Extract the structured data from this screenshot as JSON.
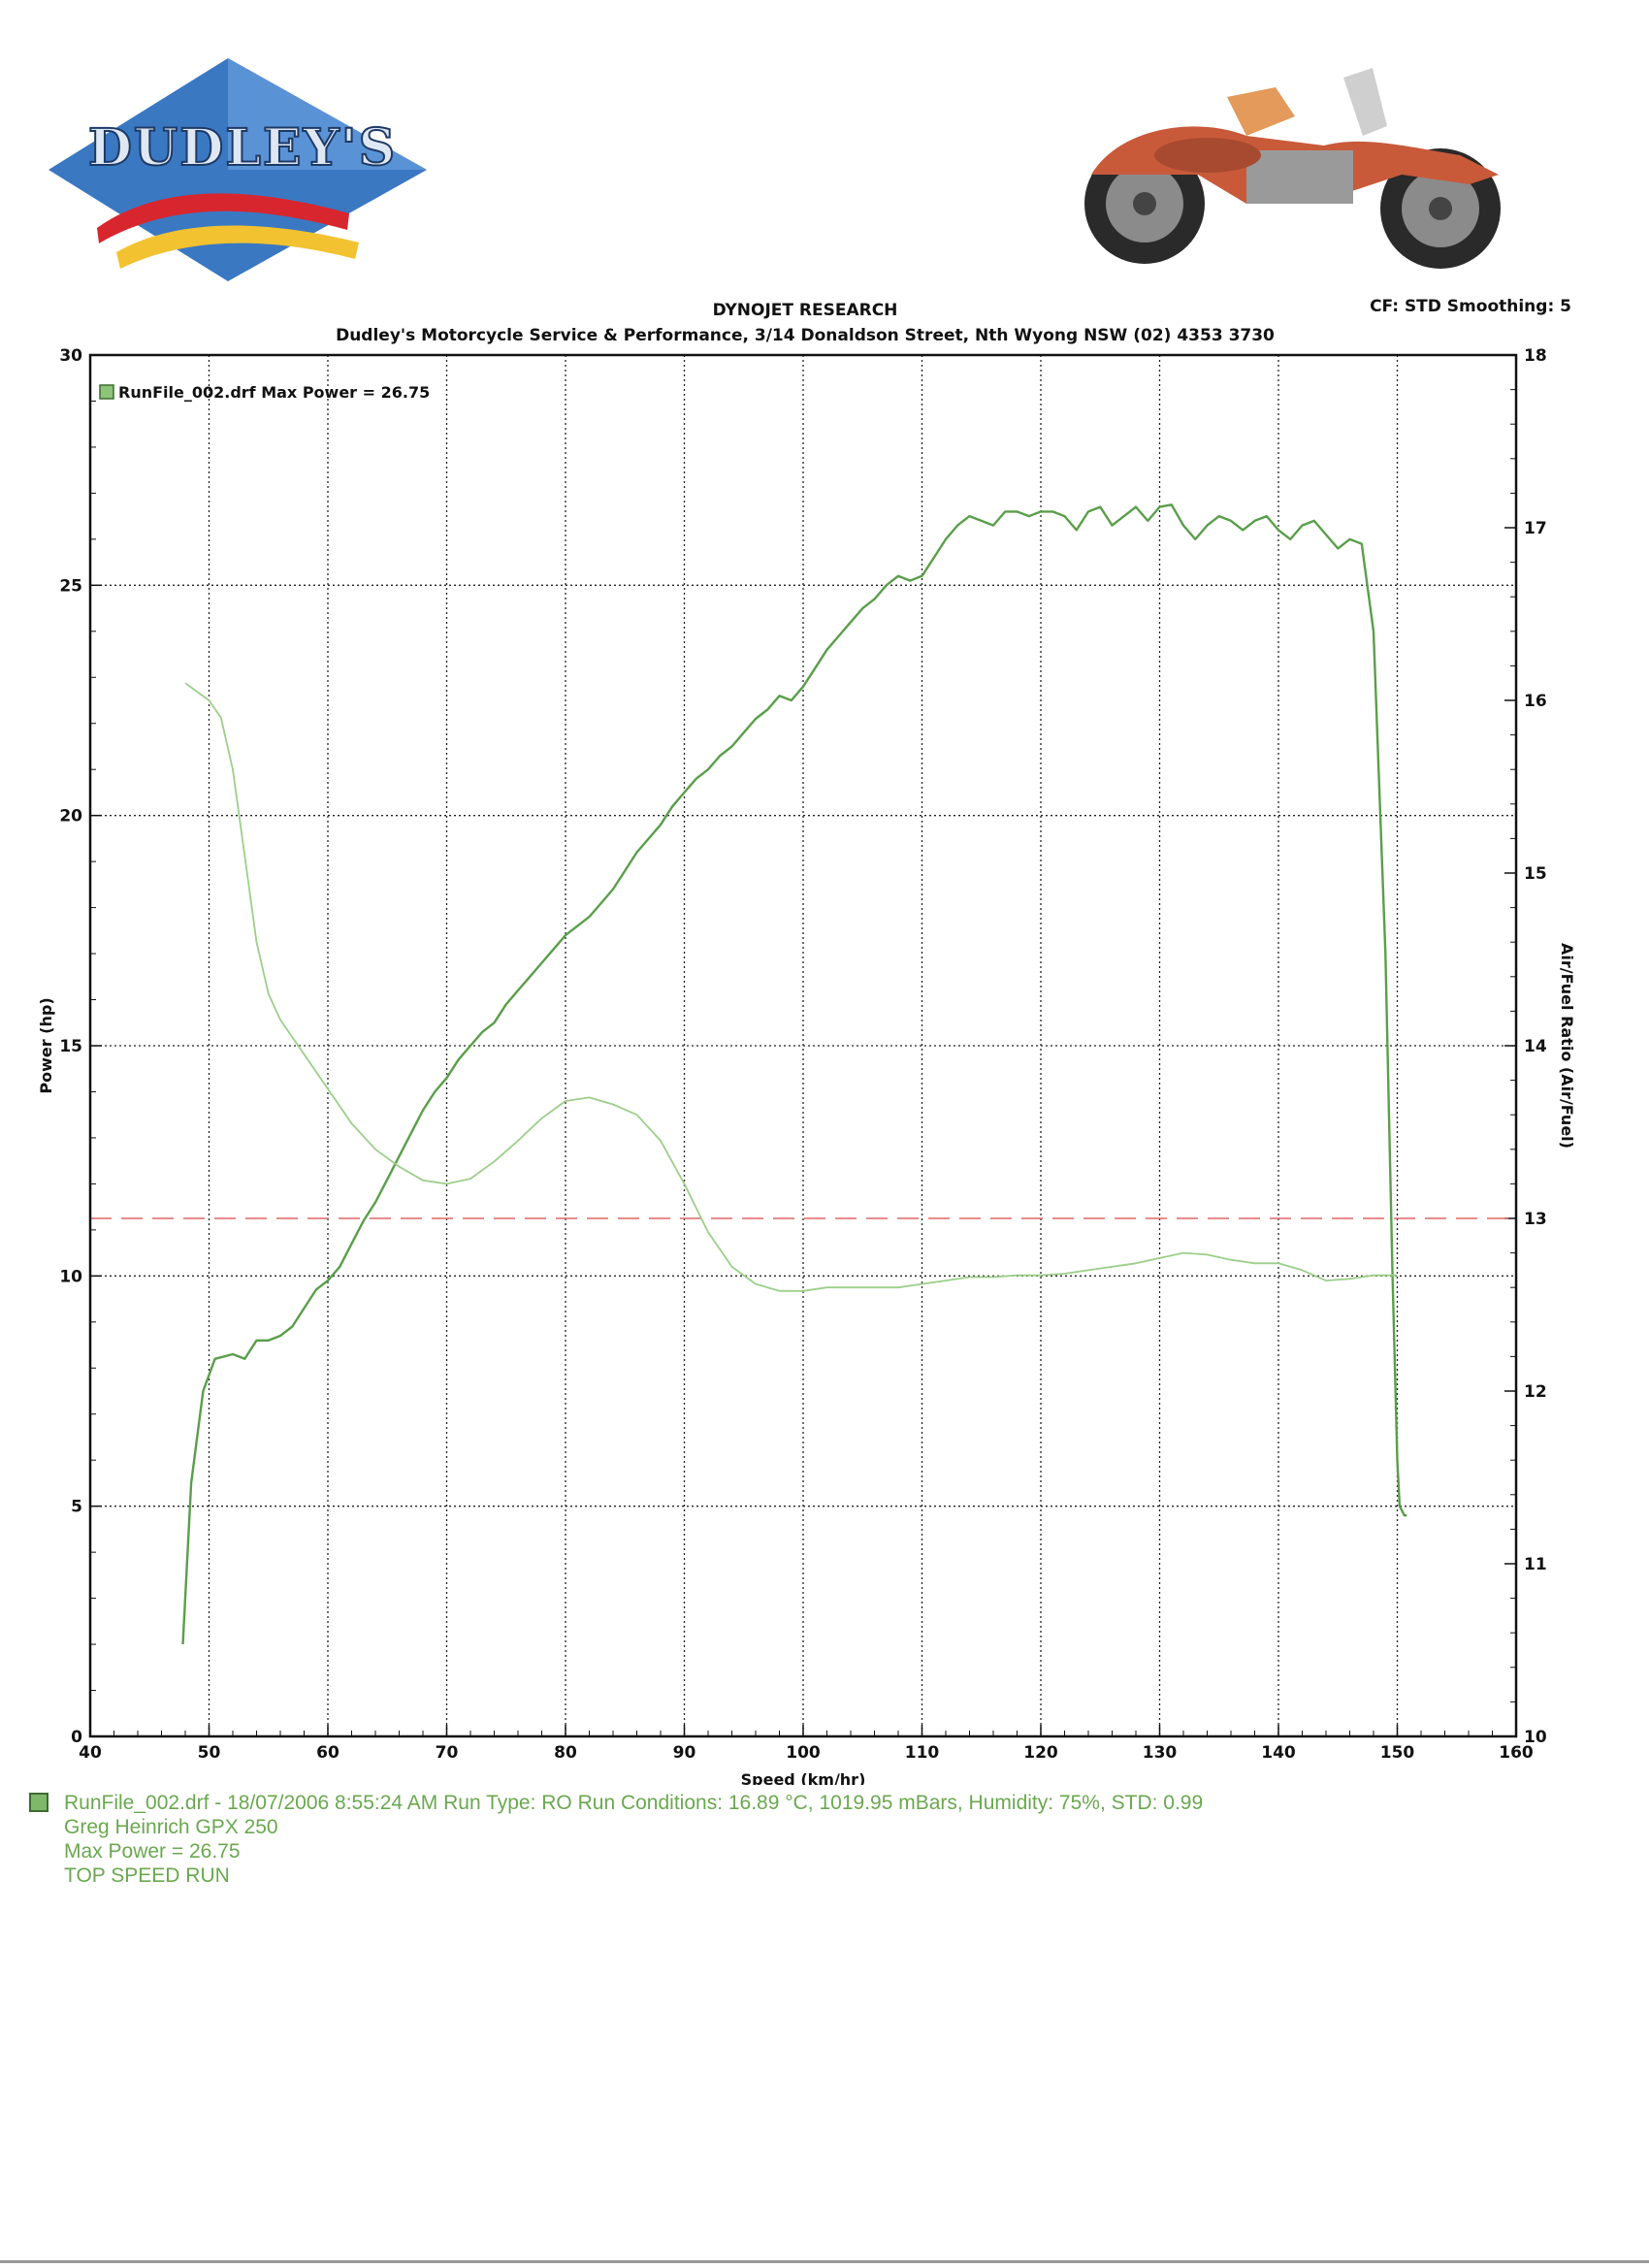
{
  "header": {
    "logo_text": "DUDLEY'S",
    "title": "DYNOJET RESEARCH",
    "subtitle": "Dudley's Motorcycle Service & Performance, 3/14 Donaldson Street, Nth Wyong NSW (02) 4353 3730",
    "cf_label": "CF: STD  Smoothing: 5"
  },
  "legend": {
    "label": "RunFile_002.drf Max Power = 26.75"
  },
  "run_info": {
    "line1": "RunFile_002.drf - 18/07/2006 8:55:24 AM  Run Type: RO  Run Conditions: 16.89 °C, 1019.95 mBars,  Humidity:  75%, STD: 0.99",
    "line2": "Greg Heinrich GPX 250",
    "line3": "Max Power = 26.75",
    "line4": "TOP SPEED RUN"
  },
  "colors": {
    "power_line": "#5a9e4a",
    "afr_line": "#9ccf8a",
    "reference_line": "#e06666",
    "info_text": "#6aa84f",
    "grid": "#222222"
  },
  "chart_data": {
    "type": "line",
    "title": "DYNOJET RESEARCH",
    "xlabel": "Speed (km/hr)",
    "ylabel": "Power (hp)",
    "y2label": "Air/Fuel Ratio (Air/Fuel)",
    "xlim": [
      40,
      160
    ],
    "ylim": [
      0,
      30
    ],
    "y2lim": [
      10,
      18
    ],
    "x_ticks": [
      40,
      50,
      60,
      70,
      80,
      90,
      100,
      110,
      120,
      130,
      140,
      150,
      160
    ],
    "y_ticks": [
      0,
      5,
      10,
      15,
      20,
      25,
      30
    ],
    "y2_ticks": [
      10,
      11,
      12,
      13,
      14,
      15,
      16,
      17,
      18
    ],
    "grid": true,
    "legend_position": "top-left",
    "reference_line": {
      "axis": "y2",
      "value": 13,
      "style": "dashed"
    },
    "series": [
      {
        "name": "RunFile_002.drf",
        "axis": "y",
        "x": [
          47.8,
          48.5,
          49.5,
          50.5,
          52,
          53,
          54,
          55,
          56,
          57,
          58,
          59,
          60,
          61,
          62,
          63,
          64,
          65,
          66,
          67,
          68,
          69,
          70,
          71,
          72,
          73,
          74,
          75,
          76,
          77,
          78,
          79,
          80,
          81,
          82,
          83,
          84,
          85,
          86,
          87,
          88,
          89,
          90,
          91,
          92,
          93,
          94,
          95,
          96,
          97,
          98,
          99,
          100,
          101,
          102,
          103,
          104,
          105,
          106,
          107,
          108,
          109,
          110,
          111,
          112,
          113,
          114,
          115,
          116,
          117,
          118,
          119,
          120,
          121,
          122,
          123,
          124,
          125,
          126,
          127,
          128,
          129,
          130,
          131,
          132,
          133,
          134,
          135,
          136,
          137,
          138,
          139,
          140,
          141,
          142,
          143,
          144,
          145,
          146,
          147,
          148,
          149,
          149.6,
          150.0,
          150.2,
          150.4,
          150.6,
          150.8
        ],
        "y": [
          2.0,
          5.5,
          7.5,
          8.2,
          8.3,
          8.2,
          8.6,
          8.6,
          8.7,
          8.9,
          9.3,
          9.7,
          9.9,
          10.2,
          10.7,
          11.2,
          11.6,
          12.1,
          12.6,
          13.1,
          13.6,
          14.0,
          14.3,
          14.7,
          15.0,
          15.3,
          15.5,
          15.9,
          16.2,
          16.5,
          16.8,
          17.1,
          17.4,
          17.6,
          17.8,
          18.1,
          18.4,
          18.8,
          19.2,
          19.5,
          19.8,
          20.2,
          20.5,
          20.8,
          21.0,
          21.3,
          21.5,
          21.8,
          22.1,
          22.3,
          22.6,
          22.5,
          22.8,
          23.2,
          23.6,
          23.9,
          24.2,
          24.5,
          24.7,
          25.0,
          25.2,
          25.1,
          25.2,
          25.6,
          26.0,
          26.3,
          26.5,
          26.4,
          26.3,
          26.6,
          26.6,
          26.5,
          26.6,
          26.6,
          26.5,
          26.2,
          26.6,
          26.7,
          26.3,
          26.5,
          26.7,
          26.4,
          26.7,
          26.75,
          26.3,
          26.0,
          26.3,
          26.5,
          26.4,
          26.2,
          26.4,
          26.5,
          26.2,
          26.0,
          26.3,
          26.4,
          26.1,
          25.8,
          26.0,
          25.9,
          24.0,
          17.0,
          10.0,
          6.0,
          5.0,
          4.9,
          4.8,
          4.8
        ]
      },
      {
        "name": "RunFile_002.drf",
        "axis": "y2",
        "x": [
          48.0,
          49,
          50,
          51,
          52,
          53,
          54,
          55,
          56,
          57,
          58,
          59,
          60,
          62,
          64,
          66,
          68,
          70,
          72,
          74,
          76,
          78,
          80,
          82,
          84,
          86,
          88,
          90,
          92,
          94,
          96,
          98,
          100,
          102,
          104,
          106,
          108,
          110,
          112,
          114,
          116,
          118,
          120,
          122,
          124,
          126,
          128,
          130,
          132,
          134,
          136,
          138,
          140,
          142,
          144,
          146,
          148,
          150
        ],
        "y": [
          16.1,
          16.05,
          16.0,
          15.9,
          15.6,
          15.1,
          14.6,
          14.3,
          14.15,
          14.05,
          13.95,
          13.85,
          13.75,
          13.55,
          13.4,
          13.3,
          13.22,
          13.2,
          13.23,
          13.33,
          13.45,
          13.58,
          13.68,
          13.7,
          13.66,
          13.6,
          13.45,
          13.2,
          12.92,
          12.72,
          12.62,
          12.58,
          12.58,
          12.6,
          12.6,
          12.6,
          12.6,
          12.62,
          12.64,
          12.66,
          12.66,
          12.67,
          12.67,
          12.68,
          12.7,
          12.72,
          12.74,
          12.77,
          12.8,
          12.79,
          12.76,
          12.74,
          12.74,
          12.7,
          12.64,
          12.65,
          12.67,
          12.67
        ]
      }
    ]
  }
}
